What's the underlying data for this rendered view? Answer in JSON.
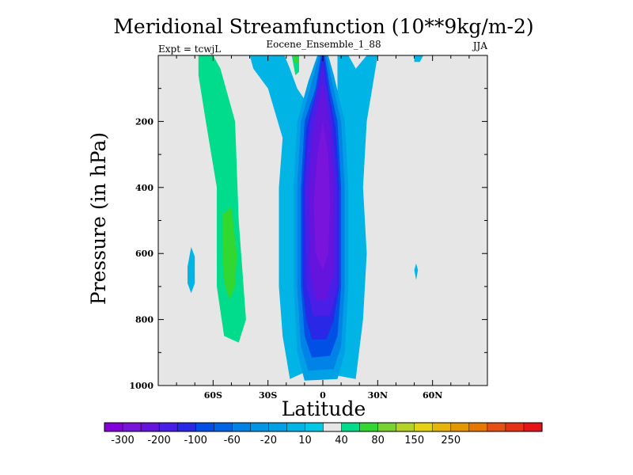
{
  "header": {
    "title": "Meridional Streamfunction (10**9kg/m-2)",
    "left_note": "Expt = tcwjL",
    "center_note": "Eocene_Ensemble_1_88",
    "right_note": "JJA"
  },
  "chart_data": {
    "type": "heatmap",
    "title": "Meridional Streamfunction (10**9kg/m-2)",
    "xlabel": "Latitude",
    "ylabel": "Pressure (in hPa)",
    "xlim": [
      -90,
      90
    ],
    "ylim": [
      1000,
      0
    ],
    "y_reversed": true,
    "xticks": [
      {
        "v": -60,
        "label": "60S"
      },
      {
        "v": -30,
        "label": "30S"
      },
      {
        "v": 0,
        "label": "0"
      },
      {
        "v": 30,
        "label": "30N"
      },
      {
        "v": 60,
        "label": "60N"
      }
    ],
    "yticks": [
      200,
      400,
      600,
      800,
      1000
    ],
    "background_color": "#e6e6e6",
    "contour_regions": [
      {
        "value": 10,
        "color": "#00dc8c",
        "polygon": [
          [
            -68,
            0
          ],
          [
            -60,
            0
          ],
          [
            -56,
            40
          ],
          [
            -48,
            200
          ],
          [
            -46,
            500
          ],
          [
            -42,
            800
          ],
          [
            -46,
            870
          ],
          [
            -54,
            850
          ],
          [
            -58,
            700
          ],
          [
            -58,
            400
          ],
          [
            -64,
            200
          ],
          [
            -68,
            60
          ]
        ]
      },
      {
        "value": 40,
        "color": "#32d732",
        "polygon": [
          [
            -55,
            480
          ],
          [
            -50,
            460
          ],
          [
            -47,
            600
          ],
          [
            -48,
            700
          ],
          [
            -51,
            740
          ],
          [
            -54,
            690
          ],
          [
            -55,
            580
          ]
        ]
      },
      {
        "value": 10,
        "color": "#00dc8c",
        "polygon": [
          [
            -17,
            0
          ],
          [
            -13,
            0
          ],
          [
            -13,
            50
          ],
          [
            -15,
            60
          ]
        ]
      },
      {
        "value": 40,
        "color": "#32d732",
        "polygon": [
          [
            -16,
            0
          ],
          [
            -14,
            0
          ],
          [
            -13,
            20
          ],
          [
            -16,
            25
          ]
        ]
      },
      {
        "value": 10,
        "color": "#00dc8c",
        "polygon": [
          [
            10,
            0
          ],
          [
            14,
            0
          ],
          [
            11,
            25
          ]
        ]
      },
      {
        "value": -20,
        "color": "#00b4e6",
        "polygon": [
          [
            -40,
            0
          ],
          [
            -21,
            0
          ],
          [
            -18,
            40
          ],
          [
            -14,
            100
          ],
          [
            -8,
            150
          ],
          [
            -6,
            300
          ],
          [
            -6,
            700
          ],
          [
            -8,
            850
          ],
          [
            -6,
            950
          ],
          [
            -18,
            980
          ],
          [
            -22,
            850
          ],
          [
            -24,
            700
          ],
          [
            -24,
            400
          ],
          [
            -22,
            250
          ],
          [
            -30,
            100
          ],
          [
            -38,
            40
          ]
        ]
      },
      {
        "value": -20,
        "color": "#00b4e6",
        "polygon": [
          [
            8,
            0
          ],
          [
            14,
            0
          ],
          [
            18,
            40
          ],
          [
            24,
            0
          ],
          [
            30,
            0
          ],
          [
            24,
            200
          ],
          [
            22,
            400
          ],
          [
            24,
            600
          ],
          [
            22,
            800
          ],
          [
            18,
            980
          ],
          [
            8,
            970
          ]
        ]
      },
      {
        "value": -20,
        "color": "#00b4e6",
        "polygon": [
          [
            -72,
            580
          ],
          [
            -70,
            610
          ],
          [
            -70,
            690
          ],
          [
            -72,
            720
          ],
          [
            -74,
            690
          ],
          [
            -74,
            640
          ]
        ]
      },
      {
        "value": -20,
        "color": "#00b4e6",
        "polygon": [
          [
            51,
            630
          ],
          [
            52,
            650
          ],
          [
            51,
            680
          ],
          [
            50,
            650
          ]
        ]
      },
      {
        "value": -20,
        "color": "#00b4e6",
        "polygon": [
          [
            50,
            0
          ],
          [
            55,
            0
          ],
          [
            53,
            20
          ],
          [
            50,
            20
          ]
        ]
      },
      {
        "value": -40,
        "color": "#00a0e6",
        "polygon": [
          [
            -3,
            0
          ],
          [
            3,
            0
          ],
          [
            6,
            60
          ],
          [
            12,
            200
          ],
          [
            14,
            400
          ],
          [
            14,
            700
          ],
          [
            12,
            900
          ],
          [
            8,
            980
          ],
          [
            -10,
            985
          ],
          [
            -14,
            900
          ],
          [
            -16,
            700
          ],
          [
            -16,
            400
          ],
          [
            -14,
            200
          ],
          [
            -8,
            80
          ]
        ]
      },
      {
        "value": -60,
        "color": "#0082e6",
        "polygon": [
          [
            -2,
            0
          ],
          [
            2,
            0
          ],
          [
            5,
            80
          ],
          [
            10,
            200
          ],
          [
            12,
            400
          ],
          [
            12,
            700
          ],
          [
            10,
            880
          ],
          [
            6,
            950
          ],
          [
            -8,
            955
          ],
          [
            -12,
            880
          ],
          [
            -14,
            700
          ],
          [
            -14,
            400
          ],
          [
            -12,
            200
          ],
          [
            -6,
            80
          ]
        ]
      },
      {
        "value": -100,
        "color": "#0050e6",
        "polygon": [
          [
            -1,
            0
          ],
          [
            1,
            0
          ],
          [
            4,
            100
          ],
          [
            8,
            200
          ],
          [
            10,
            400
          ],
          [
            10,
            700
          ],
          [
            8,
            850
          ],
          [
            4,
            910
          ],
          [
            -6,
            915
          ],
          [
            -10,
            850
          ],
          [
            -12,
            700
          ],
          [
            -12,
            400
          ],
          [
            -10,
            200
          ],
          [
            -4,
            100
          ]
        ]
      },
      {
        "value": -150,
        "color": "#2828e6",
        "polygon": [
          [
            -0.5,
            0
          ],
          [
            0.5,
            0
          ],
          [
            3,
            100
          ],
          [
            7,
            220
          ],
          [
            9,
            400
          ],
          [
            9,
            700
          ],
          [
            6,
            800
          ],
          [
            2,
            860
          ],
          [
            -6,
            860
          ],
          [
            -9,
            800
          ],
          [
            -11,
            700
          ],
          [
            -11,
            400
          ],
          [
            -9,
            220
          ],
          [
            -3,
            100
          ]
        ]
      },
      {
        "value": -200,
        "color": "#4a1ee6",
        "polygon": [
          [
            0,
            20
          ],
          [
            5,
            200
          ],
          [
            8,
            400
          ],
          [
            8,
            700
          ],
          [
            4,
            790
          ],
          [
            -5,
            790
          ],
          [
            -9,
            700
          ],
          [
            -10,
            400
          ],
          [
            -7,
            200
          ]
        ]
      },
      {
        "value": -250,
        "color": "#6414dc",
        "polygon": [
          [
            0,
            80
          ],
          [
            4,
            220
          ],
          [
            6,
            400
          ],
          [
            6,
            650
          ],
          [
            2,
            740
          ],
          [
            -4,
            740
          ],
          [
            -7,
            650
          ],
          [
            -8,
            400
          ],
          [
            -5,
            220
          ]
        ]
      },
      {
        "value": -300,
        "color": "#7814dc",
        "polygon": [
          [
            0,
            200
          ],
          [
            3,
            300
          ],
          [
            4,
            450
          ],
          [
            3,
            600
          ],
          [
            0,
            650
          ],
          [
            -4,
            600
          ],
          [
            -5,
            450
          ],
          [
            -3,
            300
          ]
        ]
      }
    ],
    "colorbar": {
      "colors": [
        "#8200dc",
        "#7814dc",
        "#6414dc",
        "#4a1ee6",
        "#2828e6",
        "#0050e6",
        "#0064e6",
        "#0082e6",
        "#0096e6",
        "#00a0e6",
        "#00b4e6",
        "#00c8e6",
        "#e6e6e6",
        "#00dc8c",
        "#32d732",
        "#78d232",
        "#b4d228",
        "#e6d214",
        "#e6b40a",
        "#e69600",
        "#e67800",
        "#e65014",
        "#e63214",
        "#e61414"
      ],
      "labels": [
        "-300",
        "-200",
        "-100",
        "-60",
        "-20",
        "10",
        "40",
        "80",
        "150",
        "250"
      ]
    }
  }
}
